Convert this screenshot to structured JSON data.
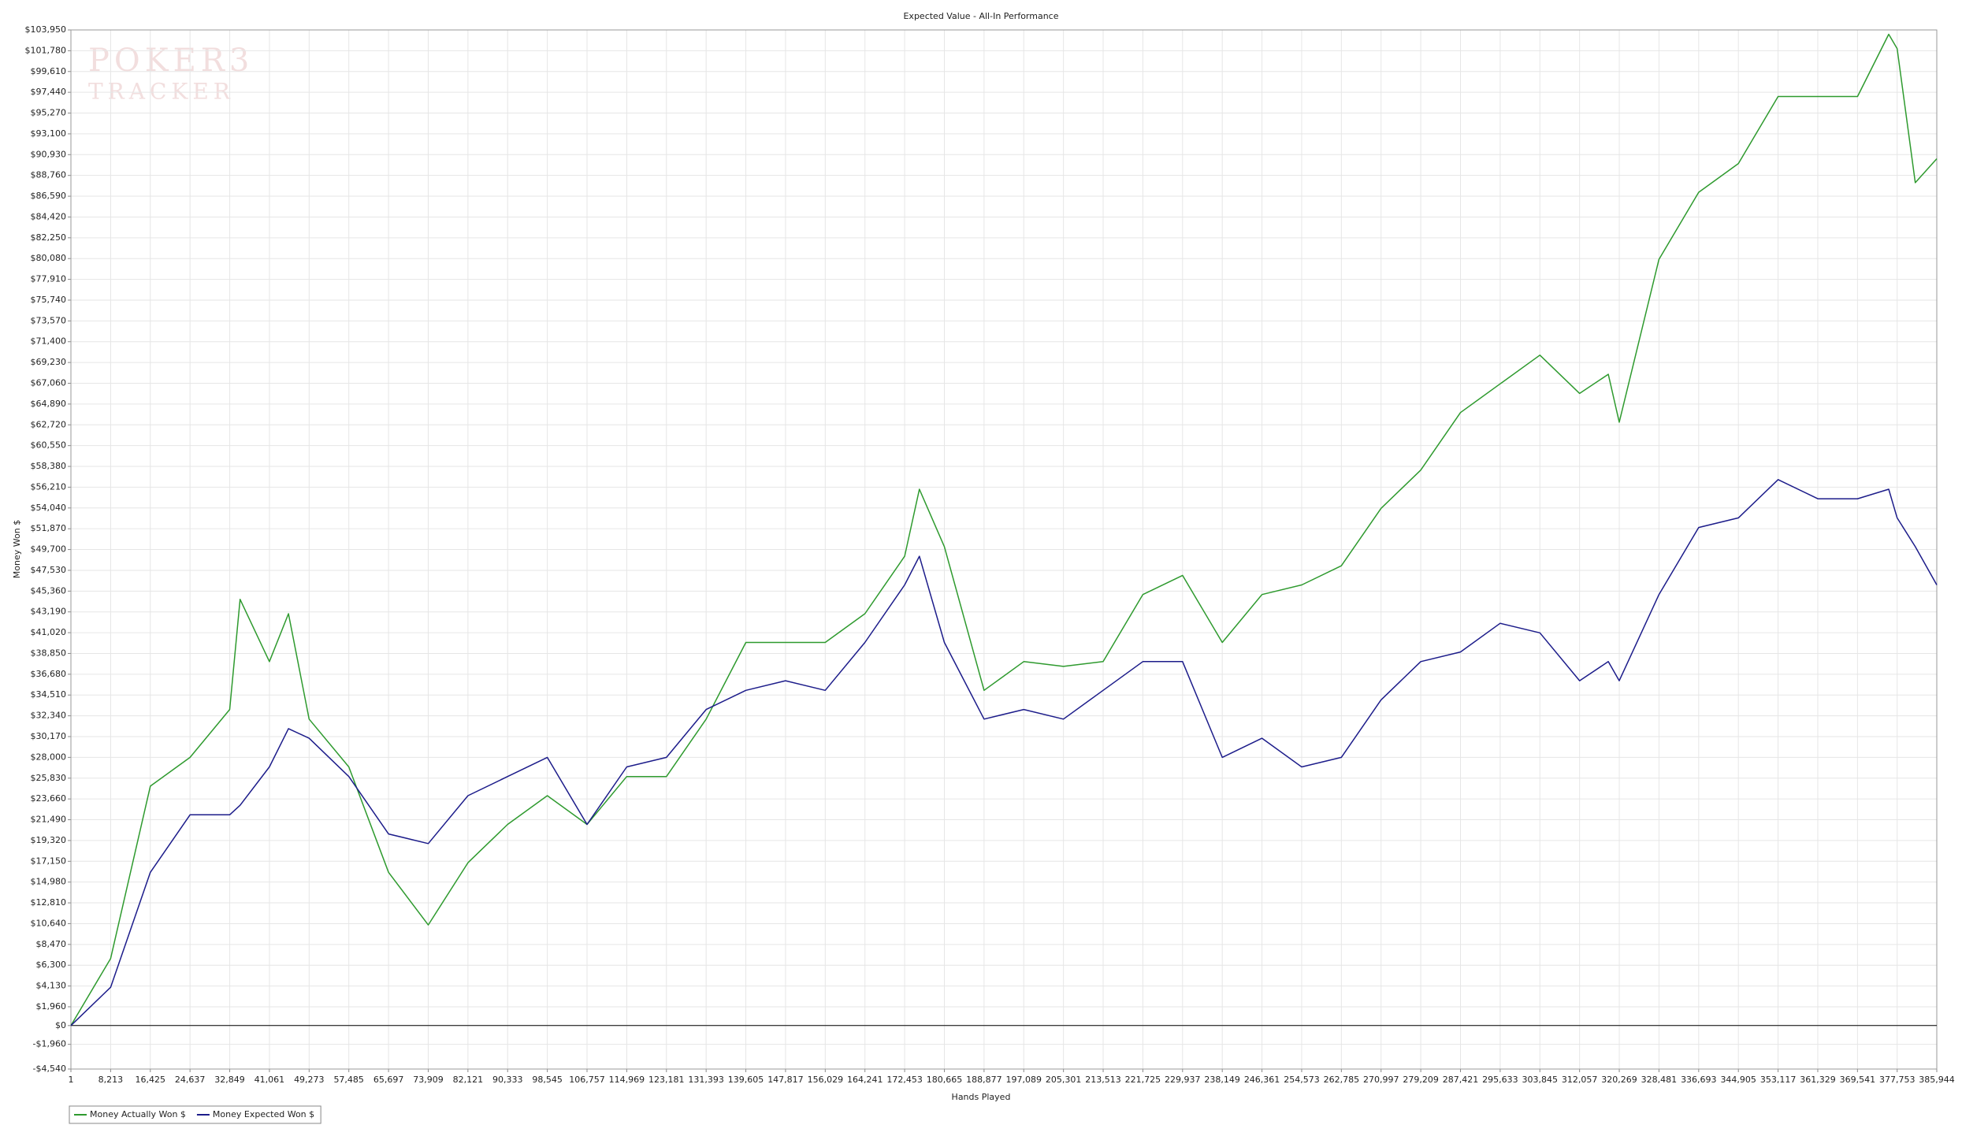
{
  "chart_data": {
    "type": "line",
    "title": "Expected Value - All-In Performance",
    "x_label": "Hands Played",
    "y_label": "Money Won $",
    "watermark": {
      "line1": "POKER3",
      "line2": "TRACKER"
    },
    "grid": true,
    "legend": "bottom-left",
    "xlim": [
      1,
      385944
    ],
    "ylim": [
      -4540,
      103950
    ],
    "x": [
      1,
      8213,
      16425,
      24637,
      32849,
      35000,
      41061,
      45000,
      49273,
      57485,
      65697,
      73909,
      82121,
      90333,
      98545,
      106757,
      114969,
      123181,
      131393,
      139605,
      147817,
      156029,
      164241,
      172453,
      175500,
      180665,
      188877,
      197089,
      205301,
      213513,
      221725,
      229937,
      238149,
      246361,
      254573,
      262785,
      270997,
      279209,
      287421,
      295633,
      303845,
      312057,
      318000,
      320269,
      328481,
      336693,
      344905,
      353117,
      361329,
      369541,
      376000,
      377753,
      381500,
      385944
    ],
    "series": [
      {
        "name": "Money Actually Won $",
        "color": "#2e9a2e",
        "values": [
          0,
          7000,
          25000,
          28000,
          33000,
          44500,
          38000,
          43000,
          32000,
          27000,
          16000,
          10500,
          17000,
          21000,
          24000,
          21000,
          26000,
          26000,
          32000,
          40000,
          40000,
          40000,
          43000,
          49000,
          56000,
          50000,
          35000,
          38000,
          37500,
          38000,
          45000,
          47000,
          40000,
          45000,
          46000,
          48000,
          54000,
          58000,
          64000,
          67000,
          70000,
          66000,
          68000,
          63000,
          80000,
          87000,
          90000,
          97000,
          97000,
          97000,
          103500,
          102000,
          88000,
          90500
        ]
      },
      {
        "name": "Money Expected Won $",
        "color": "#1c1c8a",
        "values": [
          0,
          4000,
          16000,
          22000,
          22000,
          23000,
          27000,
          31000,
          30000,
          26000,
          20000,
          19000,
          24000,
          26000,
          28000,
          21000,
          27000,
          28000,
          33000,
          35000,
          36000,
          35000,
          40000,
          46000,
          49000,
          40000,
          32000,
          33000,
          32000,
          35000,
          38000,
          38000,
          28000,
          30000,
          27000,
          28000,
          34000,
          38000,
          39000,
          42000,
          41000,
          36000,
          38000,
          36000,
          45000,
          52000,
          53000,
          57000,
          55000,
          55000,
          56000,
          53000,
          50000,
          46000
        ]
      }
    ],
    "yticks": [
      {
        "value": -4540,
        "label": "-$4,540"
      },
      {
        "value": -1960,
        "label": "-$1,960"
      },
      {
        "value": 0,
        "label": "$0"
      },
      {
        "value": 1960,
        "label": "$1,960"
      },
      {
        "value": 4130,
        "label": "$4,130"
      },
      {
        "value": 6300,
        "label": "$6,300"
      },
      {
        "value": 8470,
        "label": "$8,470"
      },
      {
        "value": 10640,
        "label": "$10,640"
      },
      {
        "value": 12810,
        "label": "$12,810"
      },
      {
        "value": 14980,
        "label": "$14,980"
      },
      {
        "value": 17150,
        "label": "$17,150"
      },
      {
        "value": 19320,
        "label": "$19,320"
      },
      {
        "value": 21490,
        "label": "$21,490"
      },
      {
        "value": 23660,
        "label": "$23,660"
      },
      {
        "value": 25830,
        "label": "$25,830"
      },
      {
        "value": 28000,
        "label": "$28,000"
      },
      {
        "value": 30170,
        "label": "$30,170"
      },
      {
        "value": 32340,
        "label": "$32,340"
      },
      {
        "value": 34510,
        "label": "$34,510"
      },
      {
        "value": 36680,
        "label": "$36,680"
      },
      {
        "value": 38850,
        "label": "$38,850"
      },
      {
        "value": 41020,
        "label": "$41,020"
      },
      {
        "value": 43190,
        "label": "$43,190"
      },
      {
        "value": 45360,
        "label": "$45,360"
      },
      {
        "value": 47530,
        "label": "$47,530"
      },
      {
        "value": 49700,
        "label": "$49,700"
      },
      {
        "value": 51870,
        "label": "$51,870"
      },
      {
        "value": 54040,
        "label": "$54,040"
      },
      {
        "value": 56210,
        "label": "$56,210"
      },
      {
        "value": 58380,
        "label": "$58,380"
      },
      {
        "value": 60550,
        "label": "$60,550"
      },
      {
        "value": 62720,
        "label": "$62,720"
      },
      {
        "value": 64890,
        "label": "$64,890"
      },
      {
        "value": 67060,
        "label": "$67,060"
      },
      {
        "value": 69230,
        "label": "$69,230"
      },
      {
        "value": 71400,
        "label": "$71,400"
      },
      {
        "value": 73570,
        "label": "$73,570"
      },
      {
        "value": 75740,
        "label": "$75,740"
      },
      {
        "value": 77910,
        "label": "$77,910"
      },
      {
        "value": 80080,
        "label": "$80,080"
      },
      {
        "value": 82250,
        "label": "$82,250"
      },
      {
        "value": 84420,
        "label": "$84,420"
      },
      {
        "value": 86590,
        "label": "$86,590"
      },
      {
        "value": 88760,
        "label": "$88,760"
      },
      {
        "value": 90930,
        "label": "$90,930"
      },
      {
        "value": 93100,
        "label": "$93,100"
      },
      {
        "value": 95270,
        "label": "$95,270"
      },
      {
        "value": 97440,
        "label": "$97,440"
      },
      {
        "value": 99610,
        "label": "$99,610"
      },
      {
        "value": 101780,
        "label": "$101,780"
      },
      {
        "value": 103950,
        "label": "$103,950"
      }
    ],
    "xticks": [
      1,
      {
        "value": 8213,
        "label": "8,213"
      },
      {
        "value": 16425,
        "label": "16,425"
      },
      {
        "value": 24637,
        "label": "24,637"
      },
      {
        "value": 32849,
        "label": "32,849"
      },
      {
        "value": 41061,
        "label": "41,061"
      },
      {
        "value": 49273,
        "label": "49,273"
      },
      {
        "value": 57485,
        "label": "57,485"
      },
      {
        "value": 65697,
        "label": "65,697"
      },
      {
        "value": 73909,
        "label": "73,909"
      },
      {
        "value": 82121,
        "label": "82,121"
      },
      {
        "value": 90333,
        "label": "90,333"
      },
      {
        "value": 98545,
        "label": "98,545"
      },
      {
        "value": 106757,
        "label": "106,757"
      },
      {
        "value": 114969,
        "label": "114,969"
      },
      {
        "value": 123181,
        "label": "123,181"
      },
      {
        "value": 131393,
        "label": "131,393"
      },
      {
        "value": 139605,
        "label": "139,605"
      },
      {
        "value": 147817,
        "label": "147,817"
      },
      {
        "value": 156029,
        "label": "156,029"
      },
      {
        "value": 164241,
        "label": "164,241"
      },
      {
        "value": 172453,
        "label": "172,453"
      },
      {
        "value": 180665,
        "label": "180,665"
      },
      {
        "value": 188877,
        "label": "188,877"
      },
      {
        "value": 197089,
        "label": "197,089"
      },
      {
        "value": 205301,
        "label": "205,301"
      },
      {
        "value": 213513,
        "label": "213,513"
      },
      {
        "value": 221725,
        "label": "221,725"
      },
      {
        "value": 229937,
        "label": "229,937"
      },
      {
        "value": 238149,
        "label": "238,149"
      },
      {
        "value": 246361,
        "label": "246,361"
      },
      {
        "value": 254573,
        "label": "254,573"
      },
      {
        "value": 262785,
        "label": "262,785"
      },
      {
        "value": 270997,
        "label": "270,997"
      },
      {
        "value": 279209,
        "label": "279,209"
      },
      {
        "value": 287421,
        "label": "287,421"
      },
      {
        "value": 295633,
        "label": "295,633"
      },
      {
        "value": 303845,
        "label": "303,845"
      },
      {
        "value": 312057,
        "label": "312,057"
      },
      {
        "value": 320269,
        "label": "320,269"
      },
      {
        "value": 328481,
        "label": "328,481"
      },
      {
        "value": 336693,
        "label": "336,693"
      },
      {
        "value": 344905,
        "label": "344,905"
      },
      {
        "value": 353117,
        "label": "353,117"
      },
      {
        "value": 361329,
        "label": "361,329"
      },
      {
        "value": 369541,
        "label": "369,541"
      },
      {
        "value": 377753,
        "label": "377,753"
      },
      {
        "value": 385944,
        "label": "385,944"
      }
    ]
  }
}
